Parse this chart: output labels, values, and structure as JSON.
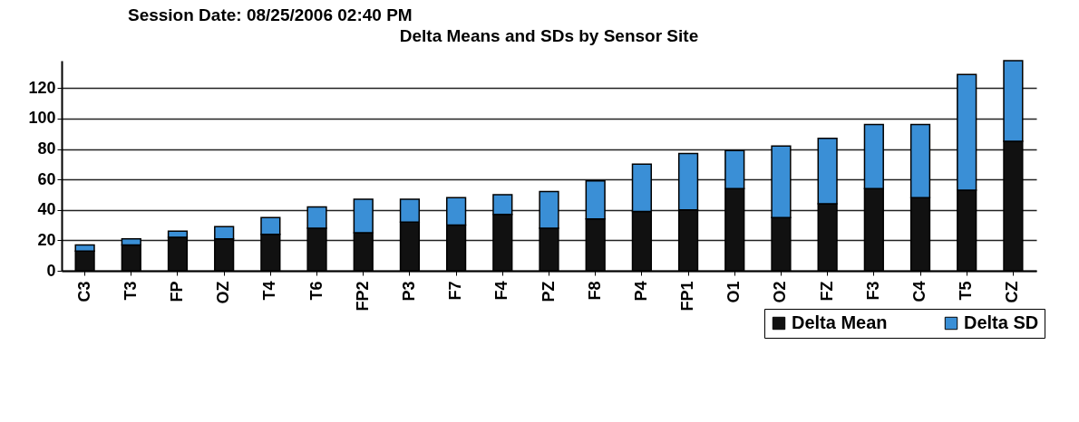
{
  "chart_data": {
    "type": "bar",
    "title": "Delta Means and SDs by Sensor Site",
    "annotations": [
      "Session Date: 08/25/2006  02:40 PM"
    ],
    "categories": [
      "C3",
      "T3",
      "FP",
      "OZ",
      "T4",
      "T6",
      "FP2",
      "P3",
      "F7",
      "F4",
      "PZ",
      "F8",
      "P4",
      "FP1",
      "O1",
      "O2",
      "FZ",
      "F3",
      "C4",
      "T5",
      "CZ"
    ],
    "series": [
      {
        "name": "Delta Mean",
        "color": "#111111",
        "values": [
          13,
          17,
          22,
          21,
          24,
          28,
          25,
          32,
          30,
          37,
          28,
          34,
          39,
          40,
          54,
          35,
          44,
          54,
          48,
          53,
          85
        ]
      },
      {
        "name": "Delta SD",
        "color": "#3a8fd6",
        "values": [
          4,
          4,
          4,
          8,
          11,
          14,
          22,
          15,
          18,
          13,
          24,
          25,
          31,
          37,
          25,
          47,
          43,
          42,
          48,
          76,
          53
        ]
      }
    ],
    "stacked": true,
    "ylim": [
      0,
      138
    ],
    "yticks": [
      0,
      20,
      40,
      60,
      80,
      100,
      120
    ],
    "grid": "y",
    "legend": "bottom right"
  }
}
